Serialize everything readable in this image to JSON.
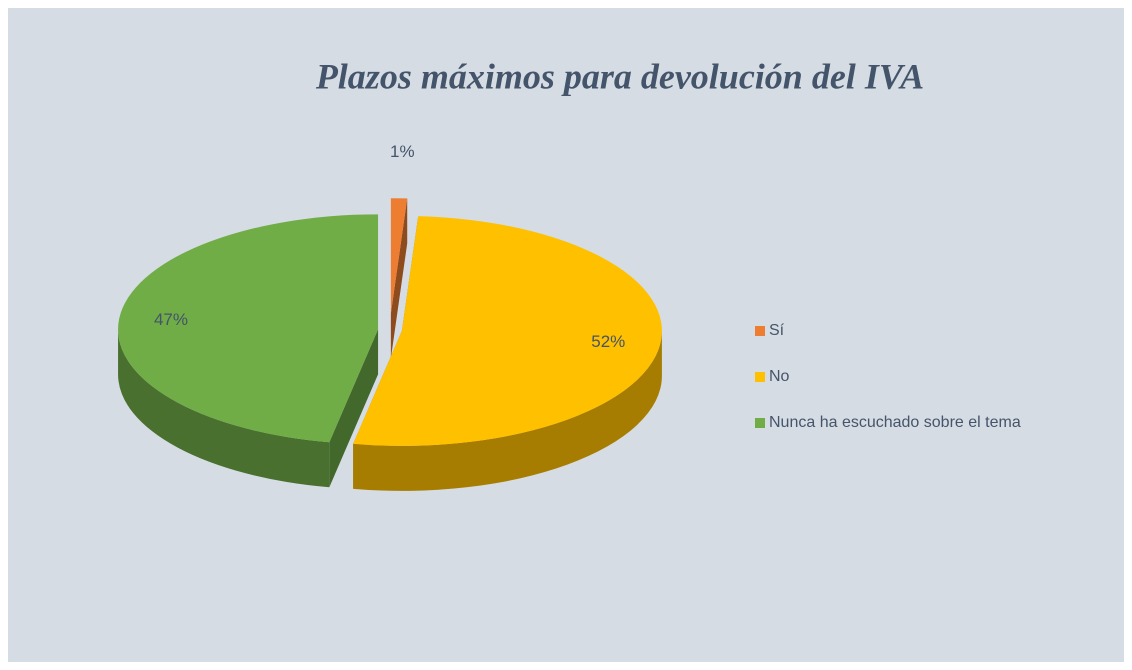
{
  "chart_data": {
    "type": "pie",
    "title": "Plazos máximos para devolución del IVA",
    "categories": [
      "Sí",
      "No",
      "Nunca ha escuchado sobre el tema"
    ],
    "values": [
      1,
      52,
      47
    ],
    "value_labels": [
      "1%",
      "52%",
      "47%"
    ],
    "colors": [
      "#ed7d31",
      "#ffc000",
      "#70ad47"
    ],
    "legend": "right"
  }
}
